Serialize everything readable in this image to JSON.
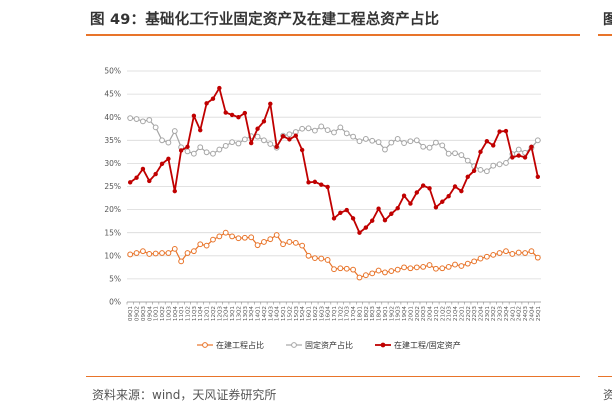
{
  "header": {
    "title": "图 49：基础化工行业固定资产及在建工程总资产占比",
    "side_glyph": "图"
  },
  "footer": {
    "source": "资料来源：wind，天风证券研究所",
    "side_glyph": "资"
  },
  "colors": {
    "orange": "#E8742A",
    "gray": "#A6A6A6",
    "red": "#C00000",
    "grid": "#D9D9D9",
    "rule": "#E8742A"
  },
  "chart_data": {
    "type": "line",
    "title": "",
    "xlabel": "",
    "ylabel": "",
    "ylim": [
      0,
      50
    ],
    "yticks": [
      "0%",
      "5%",
      "10%",
      "15%",
      "20%",
      "25%",
      "30%",
      "35%",
      "40%",
      "45%",
      "50%"
    ],
    "grid": true,
    "legend_position": "bottom",
    "x": [
      "09Q1",
      "09Q2",
      "09Q3",
      "09Q4",
      "10Q1",
      "10Q2",
      "10Q3",
      "10Q4",
      "11Q1",
      "11Q2",
      "11Q3",
      "11Q4",
      "12Q1",
      "12Q2",
      "12Q3",
      "12Q4",
      "13Q1",
      "13Q2",
      "13Q3",
      "13Q4",
      "14Q1",
      "14Q2",
      "14Q3",
      "14Q4",
      "15Q1",
      "15Q2",
      "15Q3",
      "15Q4",
      "16Q1",
      "16Q2",
      "16Q3",
      "16Q4",
      "17Q1",
      "17Q2",
      "17Q3",
      "17Q4",
      "18Q1",
      "18Q2",
      "18Q3",
      "18Q4",
      "19Q1",
      "19Q2",
      "19Q3",
      "19Q4",
      "20Q1",
      "20Q2",
      "20Q3",
      "20Q4",
      "21Q1",
      "21Q2",
      "21Q3",
      "21Q4",
      "22Q1",
      "22Q2",
      "22Q3",
      "22Q4",
      "23Q1",
      "23Q2",
      "23Q3",
      "23Q4",
      "24Q1",
      "24Q2",
      "24Q3",
      "24Q4",
      "25Q1"
    ],
    "series": [
      {
        "name": "在建工程占比",
        "color": "#E8742A",
        "values": [
          10.3,
          10.6,
          11.0,
          10.4,
          10.5,
          10.6,
          10.6,
          11.5,
          8.8,
          10.6,
          11.0,
          12.5,
          12.2,
          13.5,
          14.2,
          15.0,
          14.2,
          13.8,
          13.9,
          14.0,
          12.3,
          13.0,
          13.6,
          14.5,
          12.5,
          13.0,
          12.8,
          12.2,
          10.0,
          9.5,
          9.4,
          9.1,
          7.1,
          7.3,
          7.2,
          7.0,
          5.3,
          5.8,
          6.2,
          6.8,
          6.4,
          6.7,
          7.0,
          7.5,
          7.3,
          7.5,
          7.6,
          8.0,
          7.2,
          7.3,
          7.6,
          8.1,
          7.8,
          8.3,
          8.8,
          9.4,
          9.8,
          10.2,
          10.6,
          11.0,
          10.4,
          10.7,
          10.6,
          11.0,
          9.6
        ]
      },
      {
        "name": "固定资产占比",
        "color": "#A6A6A6",
        "values": [
          39.8,
          39.6,
          39.1,
          39.4,
          37.8,
          35.0,
          34.5,
          37.0,
          33.5,
          32.6,
          32.1,
          33.5,
          32.4,
          32.1,
          33.0,
          33.8,
          34.6,
          34.3,
          35.2,
          35.9,
          35.8,
          35.0,
          34.2,
          33.4,
          36.0,
          36.3,
          36.8,
          37.5,
          37.6,
          37.1,
          38.0,
          37.2,
          36.7,
          37.8,
          36.5,
          35.8,
          34.8,
          35.3,
          34.9,
          34.6,
          33.0,
          34.5,
          35.3,
          34.4,
          34.8,
          35.0,
          33.6,
          33.4,
          34.5,
          33.9,
          32.1,
          32.2,
          31.8,
          30.6,
          29.4,
          28.6,
          28.3,
          29.5,
          29.8,
          30.1,
          32.0,
          33.0,
          32.3,
          33.4,
          35.0
        ]
      },
      {
        "name": "在建工程/固定资产",
        "color": "#C00000",
        "values": [
          25.9,
          26.9,
          28.8,
          26.2,
          27.7,
          29.9,
          31.0,
          24.0,
          32.8,
          33.6,
          40.3,
          37.2,
          43.0,
          44.0,
          46.3,
          41.0,
          40.5,
          40.0,
          40.9,
          34.4,
          37.5,
          39.1,
          42.9,
          33.6,
          35.9,
          35.2,
          36.0,
          32.9,
          25.9,
          26.0,
          25.4,
          24.9,
          18.1,
          19.3,
          19.9,
          18.1,
          15.0,
          16.1,
          17.6,
          20.2,
          17.7,
          19.1,
          20.3,
          23.0,
          21.3,
          23.7,
          25.2,
          24.6,
          20.5,
          21.7,
          22.9,
          25.0,
          24.0,
          27.1,
          28.4,
          32.5,
          34.8,
          33.9,
          36.9,
          37.0,
          31.3,
          31.7,
          31.3,
          33.6,
          27.1
        ]
      }
    ]
  }
}
